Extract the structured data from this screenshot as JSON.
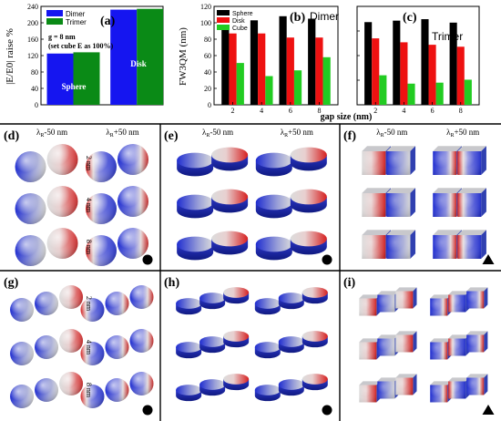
{
  "colors": {
    "dimer_blue": "#1515f0",
    "trimer_green": "#0a8a16",
    "sphere_black": "#000000",
    "disk_red": "#ee1111",
    "cube_green": "#22cc22",
    "field_red": "#d62020",
    "field_blue": "#1f2dd0",
    "field_white": "#e4e4e4"
  },
  "chart_data": [
    {
      "type": "bar",
      "panel_label": "(a)",
      "categories": [
        "Sphere",
        "Disk"
      ],
      "series": [
        {
          "name": "Dimer",
          "values": [
            125,
            232
          ]
        },
        {
          "name": "Trimer",
          "values": [
            128,
            234
          ]
        }
      ],
      "ylabel": "|E/E0| raise %",
      "ylim": [
        0,
        240
      ],
      "yticks": [
        0,
        40,
        80,
        120,
        160,
        200,
        240
      ],
      "annotation_line1": "g = 8 nm",
      "annotation_line2": "(set cube E as 100%)",
      "legend_position": "top-left"
    },
    {
      "type": "bar",
      "panel_label": "(b)",
      "title": "Dimer",
      "categories": [
        2,
        4,
        6,
        8
      ],
      "series": [
        {
          "name": "Sphere",
          "values": [
            97,
            103,
            108,
            105
          ]
        },
        {
          "name": "Disk",
          "values": [
            87,
            87,
            82,
            82
          ]
        },
        {
          "name": "Cube",
          "values": [
            51,
            35,
            42,
            58
          ]
        }
      ],
      "ylabel": "FW3QM (nm)",
      "ylim": [
        0,
        120
      ],
      "yticks": [
        0,
        20,
        40,
        60,
        80,
        100,
        120
      ],
      "legend_position": "top-left"
    },
    {
      "type": "bar",
      "panel_label": "(c)",
      "title": "Trimer",
      "categories": [
        2,
        4,
        6,
        8
      ],
      "series": [
        {
          "name": "Sphere",
          "values": [
            168,
            171,
            174,
            167
          ]
        },
        {
          "name": "Disk",
          "values": [
            135,
            127,
            122,
            118
          ]
        },
        {
          "name": "Cube",
          "values": [
            60,
            43,
            45,
            51
          ]
        }
      ],
      "ylim": [
        0,
        200
      ],
      "yticks": [
        0,
        50,
        100,
        150,
        200
      ]
    }
  ],
  "shared_xlabel": "gap size (nm)",
  "field_maps": {
    "col_left": "λ",
    "col_left_sub": "R",
    "col_left_rest": "-50 nm",
    "col_right": "λ",
    "col_right_sub": "R",
    "col_right_rest": "+50 nm",
    "gap_labels": [
      "2 nm",
      "4 nm",
      "8 nm"
    ],
    "panels": [
      {
        "label": "(d)",
        "shape": "sphere",
        "count": 2,
        "symbol": "circle"
      },
      {
        "label": "(e)",
        "shape": "disk",
        "count": 2,
        "symbol": "circle"
      },
      {
        "label": "(f)",
        "shape": "cube",
        "count": 2,
        "symbol": "triangle"
      },
      {
        "label": "(g)",
        "shape": "sphere",
        "count": 3,
        "symbol": "circle"
      },
      {
        "label": "(h)",
        "shape": "disk",
        "count": 3,
        "symbol": "circle"
      },
      {
        "label": "(i)",
        "shape": "cube",
        "count": 3,
        "symbol": "triangle"
      }
    ]
  }
}
